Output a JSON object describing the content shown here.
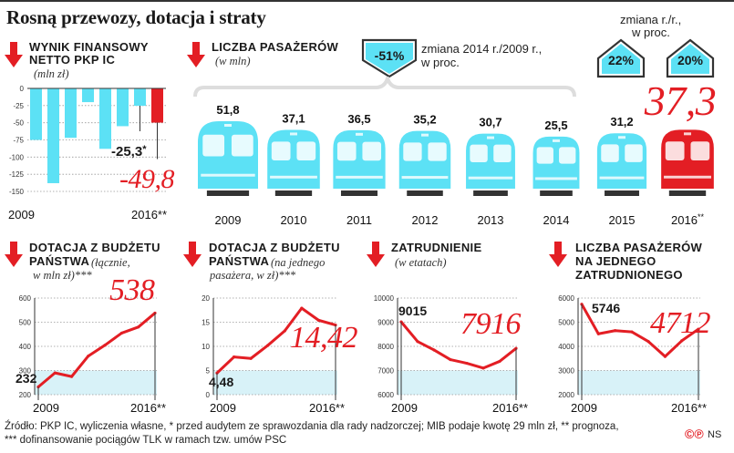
{
  "title": "Rosną przewozy, dotacja i straty",
  "colors": {
    "accent": "#e31e24",
    "cyan": "#5ce1f5",
    "panel": "#d8f2f8",
    "dark": "#333333"
  },
  "finance": {
    "header_line1": "Wynik finansowy",
    "header_line2": "netto  PKP IC",
    "unit": "(mln zł)",
    "callout_value": "-25,3",
    "callout_suffix": "*",
    "big_value": "-49,8",
    "start_label": "2009",
    "end_label": "2016**"
  },
  "passengers": {
    "header": "Liczba pasażerów",
    "unit": "(w mln)",
    "change_2014_badge": "-51%",
    "change_2014_text_line1": "zmiana 2014 r./2009 r.,",
    "change_2014_text_line2": "w proc.",
    "change_yoy_line1": "zmiana r./r.,",
    "change_yoy_line2": "w proc.",
    "change_yoy_1": "22%",
    "change_yoy_2": "20%",
    "big_value": "37,3"
  },
  "subsidy_total": {
    "header_line1": "Dotacja z budżetu",
    "header_line2": "państwa",
    "note_line1": "(łącznie,",
    "note_line2": "w mln zł)***",
    "start_value": "232",
    "big_value": "538",
    "start_label": "2009",
    "end_label": "2016**"
  },
  "subsidy_per_passenger": {
    "header_line1": "Dotacja z budżetu",
    "header_line2": "państwa",
    "note_line1": "(na jednego",
    "note_line2": "pasażera, w zł)***",
    "start_value": "4,48",
    "big_value": "14,42",
    "start_label": "2009",
    "end_label": "2016**"
  },
  "employment": {
    "header": "Zatrudnienie",
    "unit": "(w etatach)",
    "start_value": "9015",
    "big_value": "7916",
    "start_label": "2009",
    "end_label": "2016**"
  },
  "passengers_per_employee": {
    "header_line1": "Liczba pasażerów",
    "header_line2": "na jednego",
    "header_line3": "zatrudnionego",
    "start_value": "5746",
    "big_value": "4712",
    "start_label": "2009",
    "end_label": "2016**"
  },
  "footer": {
    "line1": "Źródło: PKP IC, wyliczenia własne, * przed audytem ze sprawozdania dla rady nadzorczej; MIB podaje kwotę 29 mln zł, ** prognoza,",
    "line2": "*** dofinansowanie pociągów TLK w ramach tzw. umów PSC",
    "logo": "©℗",
    "credit": "NS"
  },
  "chart_data": [
    {
      "type": "bar",
      "title": "Wynik finansowy netto PKP IC",
      "ylabel": "mln zł",
      "categories": [
        "2009",
        "2010",
        "2011",
        "2012",
        "2013",
        "2014",
        "2015",
        "2016**"
      ],
      "values": [
        -75,
        -138,
        -72,
        -20,
        -88,
        -55,
        -25.3,
        -49.8
      ],
      "ylim": [
        -150,
        0
      ],
      "yticks": [
        0,
        -25,
        -50,
        -75,
        -100,
        -125,
        -150
      ],
      "grid": true
    },
    {
      "type": "bar",
      "title": "Liczba pasażerów",
      "ylabel": "mln",
      "categories": [
        "2009",
        "2010",
        "2011",
        "2012",
        "2013",
        "2014",
        "2015",
        "2016**"
      ],
      "values": [
        51.8,
        37.1,
        36.5,
        35.2,
        30.7,
        25.5,
        31.2,
        37.3
      ],
      "labels": [
        "51,8",
        "37,1",
        "36,5",
        "35,2",
        "30,7",
        "25,5",
        "31,2",
        "37,3"
      ]
    },
    {
      "type": "line",
      "title": "Dotacja z budżetu państwa (łącznie, w mln zł)",
      "x": [
        "2009",
        "2010",
        "2011",
        "2012",
        "2013",
        "2014",
        "2015",
        "2016**"
      ],
      "y": [
        232,
        290,
        275,
        360,
        405,
        455,
        480,
        538
      ],
      "ylim": [
        200,
        600
      ],
      "yticks": [
        200,
        300,
        400,
        500,
        600
      ]
    },
    {
      "type": "line",
      "title": "Dotacja z budżetu państwa (na jednego pasażera, w zł)",
      "x": [
        "2009",
        "2010",
        "2011",
        "2012",
        "2013",
        "2014",
        "2015",
        "2016**"
      ],
      "y": [
        4.48,
        7.8,
        7.5,
        10.2,
        13.2,
        17.9,
        15.4,
        14.42
      ],
      "ylim": [
        0,
        20
      ],
      "yticks": [
        0,
        5,
        10,
        15,
        20
      ]
    },
    {
      "type": "line",
      "title": "Zatrudnienie (w etatach)",
      "x": [
        "2009",
        "2010",
        "2011",
        "2012",
        "2013",
        "2014",
        "2015",
        "2016**"
      ],
      "y": [
        9015,
        8200,
        7850,
        7450,
        7300,
        7100,
        7380,
        7916
      ],
      "ylim": [
        6000,
        10000
      ],
      "yticks": [
        6000,
        7000,
        8000,
        9000,
        10000
      ]
    },
    {
      "type": "line",
      "title": "Liczba pasażerów na jednego zatrudnionego",
      "x": [
        "2009",
        "2010",
        "2011",
        "2012",
        "2013",
        "2014",
        "2015",
        "2016**"
      ],
      "y": [
        5746,
        4520,
        4650,
        4600,
        4200,
        3580,
        4230,
        4712
      ],
      "ylim": [
        2000,
        6000
      ],
      "yticks": [
        2000,
        3000,
        4000,
        5000,
        6000
      ]
    }
  ]
}
